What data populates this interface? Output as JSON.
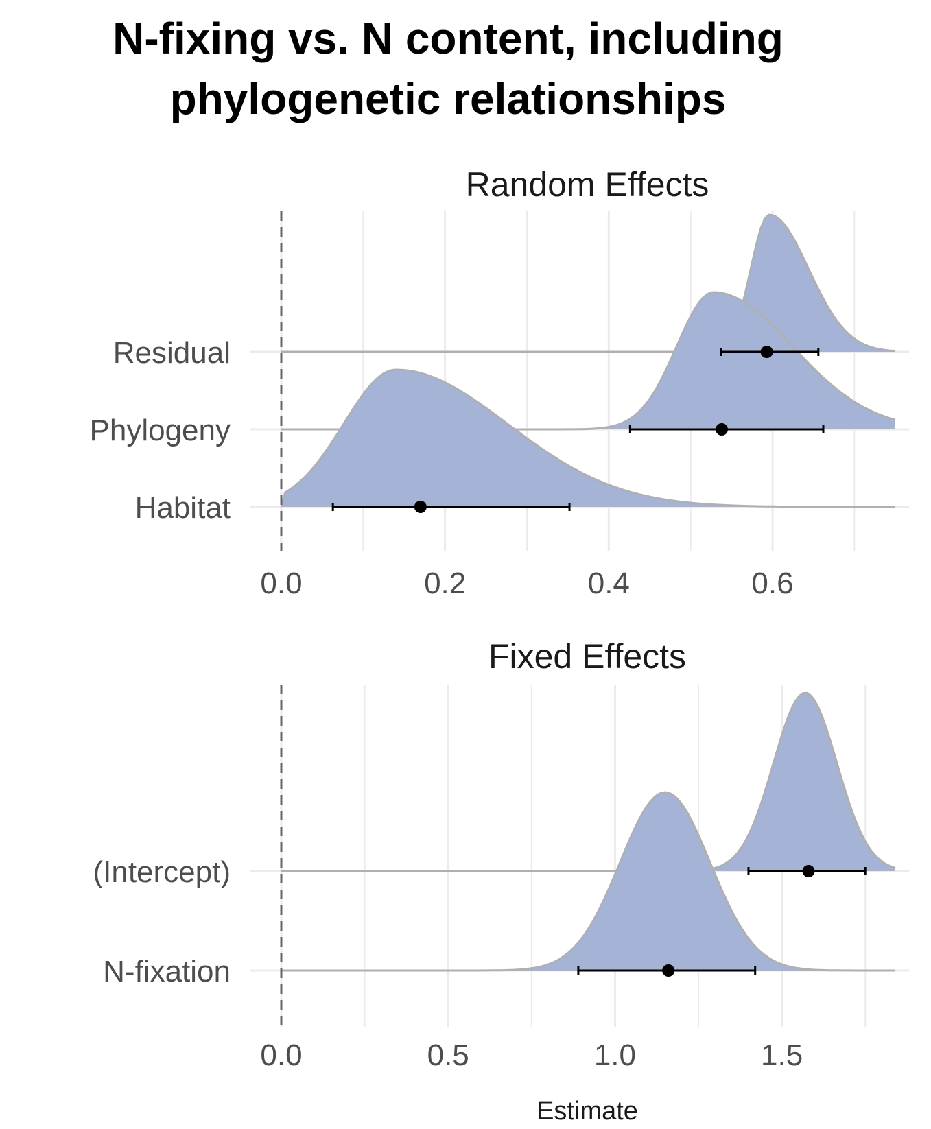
{
  "title_lines": [
    "N-fixing vs. N content, including",
    "phylogenetic relationships"
  ],
  "colors": {
    "fill": "#a4b3d6",
    "outline": "#b0b0b0",
    "grid": "#ebebeb",
    "point": "#000000",
    "refline": "#666666"
  },
  "chart_data": [
    {
      "type": "density-interval",
      "title": "Random Effects",
      "xlabel": "",
      "xlim": [
        0,
        0.75
      ],
      "xticks": [
        "0.0",
        "0.2",
        "0.4",
        "0.6"
      ],
      "xtick_values": [
        0,
        0.2,
        0.4,
        0.6
      ],
      "reference_line": 0,
      "grid": true,
      "series": [
        {
          "name": "Residual",
          "estimate": 0.593,
          "lower": 0.537,
          "upper": 0.656,
          "mode": 0.596,
          "sd": 0.03
        },
        {
          "name": "Phylogeny",
          "estimate": 0.538,
          "lower": 0.426,
          "upper": 0.662,
          "mode": 0.528,
          "sd": 0.06
        },
        {
          "name": "Habitat",
          "estimate": 0.17,
          "lower": 0.063,
          "upper": 0.352,
          "mode": 0.14,
          "sd": 0.085
        }
      ]
    },
    {
      "type": "density-interval",
      "title": "Fixed Effects",
      "xlabel": "Estimate",
      "xlim": [
        0,
        1.84
      ],
      "xticks": [
        "0.0",
        "0.5",
        "1.0",
        "1.5"
      ],
      "xtick_values": [
        0,
        0.5,
        1.0,
        1.5
      ],
      "reference_line": 0,
      "grid": true,
      "series": [
        {
          "name": "(Intercept)",
          "estimate": 1.58,
          "lower": 1.4,
          "upper": 1.75,
          "mode": 1.57,
          "sd": 0.095
        },
        {
          "name": "N-fixation",
          "estimate": 1.16,
          "lower": 0.89,
          "upper": 1.42,
          "mode": 1.15,
          "sd": 0.135
        }
      ]
    }
  ]
}
